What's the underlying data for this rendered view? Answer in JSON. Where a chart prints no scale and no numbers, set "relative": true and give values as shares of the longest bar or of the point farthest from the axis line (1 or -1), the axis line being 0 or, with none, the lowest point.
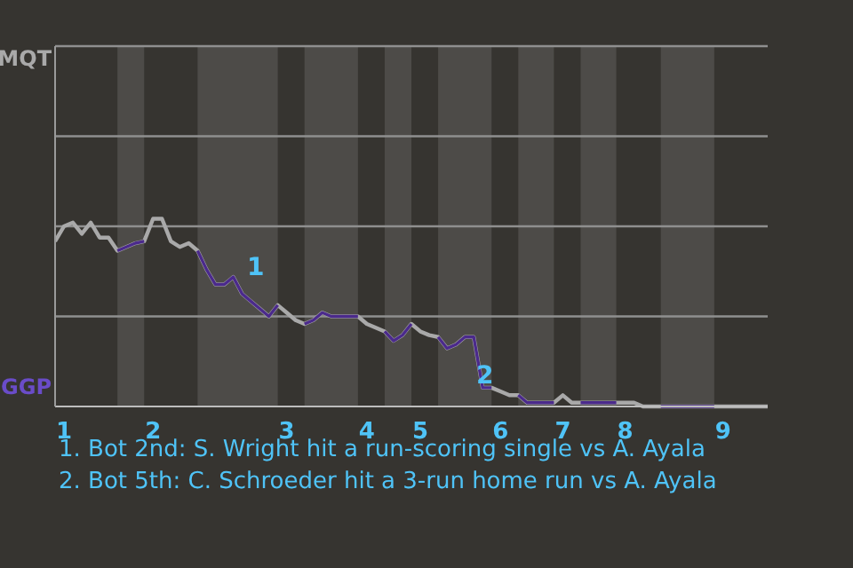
{
  "chart_data": {
    "type": "line",
    "relative": true,
    "categories": [
      null,
      "1",
      null,
      null,
      null,
      null,
      null,
      null,
      null,
      null,
      null,
      "2",
      null,
      null,
      null,
      null,
      null,
      null,
      null,
      null,
      null,
      null,
      null,
      null,
      null,
      null,
      "3",
      null,
      null,
      null,
      null,
      null,
      null,
      null,
      null,
      "4",
      null,
      null,
      null,
      null,
      null,
      "5",
      null,
      null,
      null,
      null,
      null,
      null,
      null,
      null,
      "6",
      null,
      null,
      null,
      null,
      null,
      null,
      "7",
      null,
      null,
      null,
      null,
      null,
      null,
      "8",
      null,
      null,
      null,
      null,
      null,
      null,
      null,
      null,
      null,
      null,
      "9",
      null,
      null,
      null,
      null,
      null
    ],
    "series": [
      {
        "color": "#a9a9a9",
        "values": [
          0.88,
          0.96,
          0.98,
          0.92,
          0.98,
          0.9,
          0.9,
          0.83,
          0.85,
          0.87,
          0.88,
          1,
          1,
          0.88,
          0.85,
          0.87,
          0.83,
          0.73,
          0.65,
          0.65,
          0.69,
          0.6,
          0.56,
          0.52,
          0.48,
          0.54,
          0.5,
          0.46,
          0.44,
          0.46,
          0.5,
          0.48,
          0.48,
          0.48,
          0.48,
          0.44,
          0.42,
          0.4,
          0.35,
          0.38,
          0.44,
          0.4,
          0.38,
          0.37,
          0.31,
          0.33,
          0.37,
          0.37,
          0.1,
          0.1,
          0.08,
          0.06,
          0.06,
          0.02,
          0.02,
          0.02,
          0.02,
          0.06,
          0.02,
          0.02,
          0.02,
          0.02,
          0.02,
          0.02,
          0.02,
          0.02,
          0,
          0,
          0,
          0,
          0,
          0,
          0,
          0,
          0,
          0,
          0,
          0,
          0,
          0,
          0
        ]
      },
      {
        "color": "#4b2a8c",
        "values": [
          null,
          null,
          null,
          null,
          null,
          null,
          null,
          0.83,
          0.85,
          0.87,
          0.88,
          null,
          null,
          null,
          null,
          null,
          0.83,
          0.73,
          0.65,
          0.65,
          0.69,
          0.6,
          0.56,
          0.52,
          0.48,
          0.54,
          null,
          null,
          0.44,
          0.46,
          0.5,
          0.48,
          0.48,
          0.48,
          0.48,
          null,
          null,
          0.4,
          0.35,
          0.38,
          0.44,
          null,
          null,
          0.37,
          0.31,
          0.33,
          0.37,
          0.37,
          0.1,
          0.1,
          null,
          null,
          0.06,
          0.02,
          0.02,
          0.02,
          0.02,
          null,
          null,
          0.02,
          0.02,
          0.02,
          0.02,
          0.02,
          null,
          null,
          null,
          null,
          0,
          0,
          0,
          0,
          0,
          0,
          0,
          null,
          null,
          null,
          null,
          null,
          null
        ]
      }
    ],
    "marker": "none",
    "line_style": "solid",
    "ref_lines": [
      {
        "axis": "y",
        "value": 0.48,
        "color": "#8f8f8f"
      },
      {
        "axis": "y",
        "value": 0.96,
        "color": "#8f8f8f"
      },
      {
        "axis": "y",
        "value": 1.44,
        "color": "#8f8f8f"
      },
      {
        "axis": "y",
        "value": 1.92,
        "color": "#8f8f8f"
      }
    ],
    "annotations": [
      "1",
      "2",
      "MQT",
      "GGP",
      "1. Bot 2nd: S. Wright hit a run-scoring single vs A. Ayala",
      "2. Bot 5th: C. Schroeder hit a 3-run home run vs A. Ayala"
    ]
  }
}
